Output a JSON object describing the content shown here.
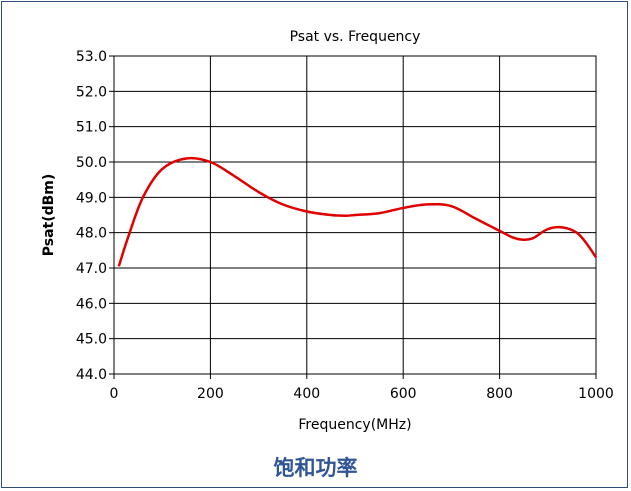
{
  "caption": "饱和功率",
  "colors": {
    "line": "#e00000",
    "frame": "#2f4f7a",
    "caption": "#2f5597"
  },
  "chart_data": {
    "type": "line",
    "title": "Psat vs. Frequency",
    "xlabel": "Frequency(MHz)",
    "ylabel": "Psat(dBm)",
    "xlim": [
      0,
      1000
    ],
    "ylim": [
      44.0,
      53.0
    ],
    "x_ticks": [
      0,
      200,
      400,
      600,
      800,
      1000
    ],
    "y_ticks": [
      "44.0",
      "45.0",
      "46.0",
      "47.0",
      "48.0",
      "49.0",
      "50.0",
      "51.0",
      "52.0",
      "53.0"
    ],
    "grid": true,
    "series": [
      {
        "x": [
          10,
          30,
          60,
          100,
          150,
          200,
          250,
          300,
          350,
          400,
          450,
          480,
          500,
          550,
          600,
          650,
          700,
          750,
          800,
          830,
          850,
          870,
          900,
          930,
          960,
          980,
          1000
        ],
        "y": [
          47.05,
          47.9,
          49.0,
          49.8,
          50.1,
          50.0,
          49.6,
          49.15,
          48.8,
          48.6,
          48.5,
          48.48,
          48.5,
          48.55,
          48.7,
          48.8,
          48.75,
          48.4,
          48.05,
          47.85,
          47.8,
          47.85,
          48.1,
          48.15,
          48.0,
          47.7,
          47.3
        ]
      }
    ]
  }
}
